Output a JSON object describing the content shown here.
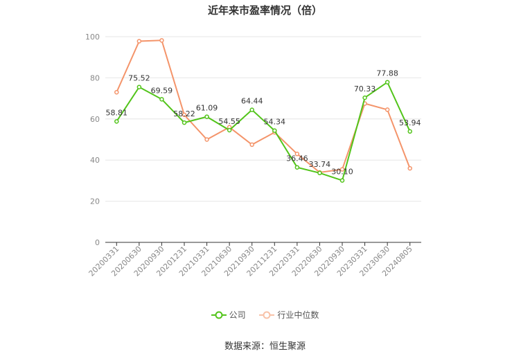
{
  "chart_data": {
    "type": "line",
    "title": "近年来市盈率情况（倍）",
    "categories": [
      "20200331",
      "20200630",
      "20200930",
      "20201231",
      "20210331",
      "20210630",
      "20210930",
      "20211231",
      "20220331",
      "20220630",
      "20220930",
      "20230331",
      "20230630",
      "20240805"
    ],
    "series": [
      {
        "name": "公司",
        "color": "#52c41a",
        "values": [
          58.81,
          75.52,
          69.59,
          58.22,
          61.09,
          54.55,
          64.44,
          54.34,
          36.46,
          33.74,
          30.1,
          70.33,
          77.88,
          53.94
        ],
        "labels": [
          "58.81",
          "75.52",
          "69.59",
          "58.22",
          "61.09",
          "54.55",
          "64.44",
          "54.34",
          "36.46",
          "33.74",
          "30.10",
          "70.33",
          "77.88",
          "53.94"
        ]
      },
      {
        "name": "行业中位数",
        "color": "#f4946a",
        "values": [
          73,
          97.8,
          98.2,
          62,
          50,
          56,
          47.5,
          53.5,
          43,
          34,
          35.5,
          67.5,
          64.5,
          36
        ]
      }
    ],
    "ylim": [
      0,
      100
    ],
    "yticks": [
      "0",
      "20",
      "40",
      "60",
      "80",
      "100"
    ],
    "grid": true,
    "legend_position": "bottom",
    "source": "数据来源：恒生聚源"
  }
}
